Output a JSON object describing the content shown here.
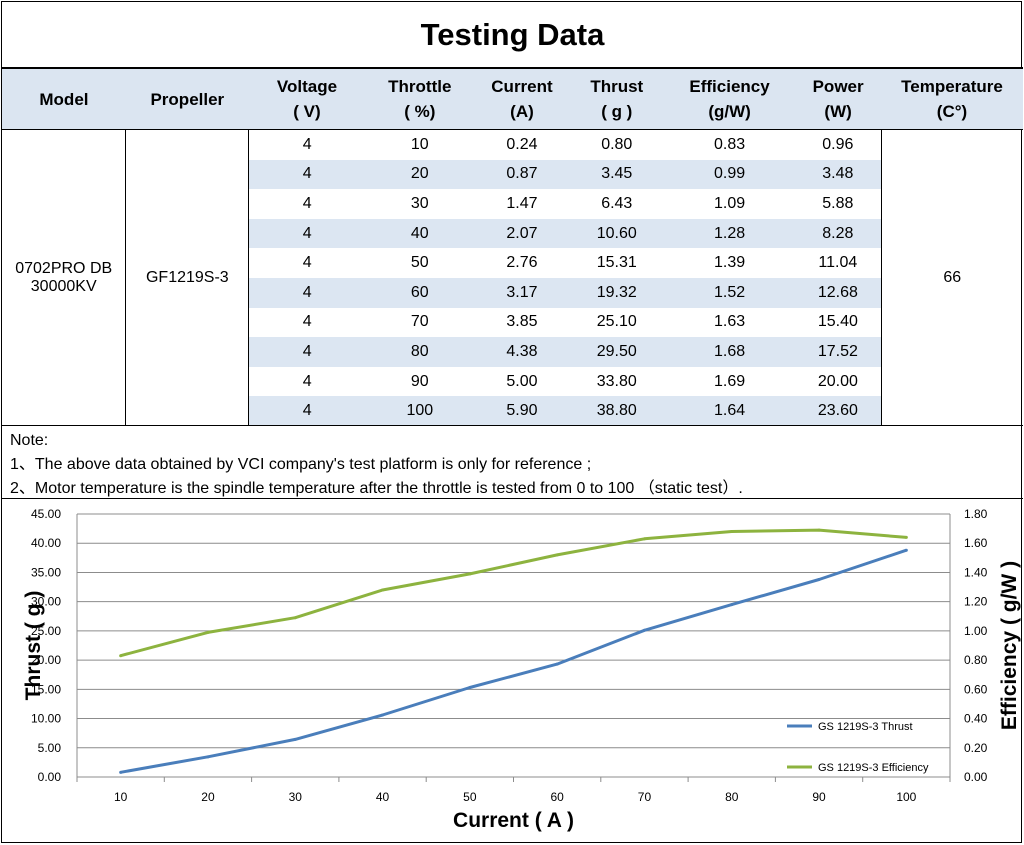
{
  "title": "Testing Data",
  "table": {
    "headers": [
      [
        "Model"
      ],
      [
        "Propeller"
      ],
      [
        "Voltage",
        "( V)"
      ],
      [
        "Throttle",
        "( %)"
      ],
      [
        "Current",
        "(A)"
      ],
      [
        "Thrust",
        "( g )"
      ],
      [
        "Efficiency",
        "(g/W)"
      ],
      [
        "Power",
        "(W)"
      ],
      [
        "Temperature",
        "(C°)"
      ]
    ],
    "model": [
      "0702PRO DB",
      "30000KV"
    ],
    "propeller": "GF1219S-3",
    "temperature": "66",
    "rows": [
      [
        "4",
        "10",
        "0.24",
        "0.80",
        "0.83",
        "0.96"
      ],
      [
        "4",
        "20",
        "0.87",
        "3.45",
        "0.99",
        "3.48"
      ],
      [
        "4",
        "30",
        "1.47",
        "6.43",
        "1.09",
        "5.88"
      ],
      [
        "4",
        "40",
        "2.07",
        "10.60",
        "1.28",
        "8.28"
      ],
      [
        "4",
        "50",
        "2.76",
        "15.31",
        "1.39",
        "11.04"
      ],
      [
        "4",
        "60",
        "3.17",
        "19.32",
        "1.52",
        "12.68"
      ],
      [
        "4",
        "70",
        "3.85",
        "25.10",
        "1.63",
        "15.40"
      ],
      [
        "4",
        "80",
        "4.38",
        "29.50",
        "1.68",
        "17.52"
      ],
      [
        "4",
        "90",
        "5.00",
        "33.80",
        "1.69",
        "20.00"
      ],
      [
        "4",
        "100",
        "5.90",
        "38.80",
        "1.64",
        "23.60"
      ]
    ]
  },
  "notes": {
    "heading": "Note:",
    "line1": "1、The above data obtained by VCI company's test platform is only for reference ;",
    "line2": "2、Motor temperature is the spindle temperature after the throttle is tested from 0 to 100 （static test）."
  },
  "chart_data": {
    "type": "line",
    "categories": [
      "10",
      "20",
      "30",
      "40",
      "50",
      "60",
      "70",
      "80",
      "90",
      "100"
    ],
    "series": [
      {
        "name": "GS 1219S-3 Thrust",
        "axis": "left",
        "color": "#4a7ebb",
        "values": [
          0.8,
          3.45,
          6.43,
          10.6,
          15.31,
          19.32,
          25.1,
          29.5,
          33.8,
          38.8
        ]
      },
      {
        "name": "GS 1219S-3 Efficiency",
        "axis": "right",
        "color": "#8db33f",
        "values": [
          0.83,
          0.99,
          1.09,
          1.28,
          1.39,
          1.52,
          1.63,
          1.68,
          1.69,
          1.64
        ]
      }
    ],
    "xlabel": "Current ( A )",
    "ylabel": "Thrust ( g )",
    "y2label": "Efficiency ( g/W )",
    "ylim": [
      0,
      45
    ],
    "y2lim": [
      0,
      1.8
    ],
    "yticks": [
      "0.00",
      "5.00",
      "10.00",
      "15.00",
      "20.00",
      "25.00",
      "30.00",
      "35.00",
      "40.00",
      "45.00"
    ],
    "y2ticks": [
      "0.00",
      "0.20",
      "0.40",
      "0.60",
      "0.80",
      "1.00",
      "1.20",
      "1.40",
      "1.60",
      "1.80"
    ],
    "grid": true,
    "legend": "bottom-right"
  }
}
